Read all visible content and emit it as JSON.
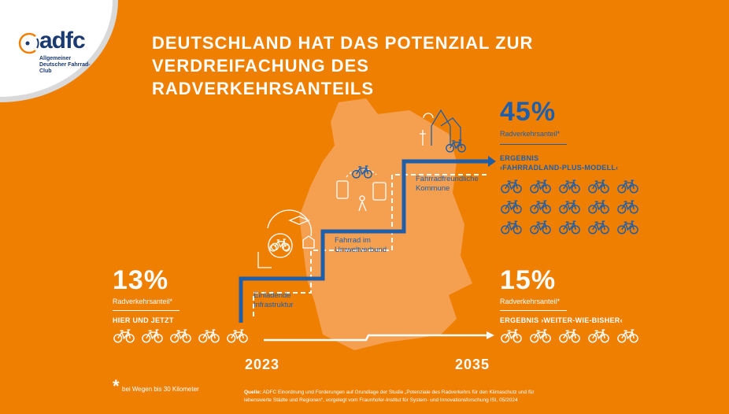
{
  "logo": {
    "word": "adfc",
    "subtitle": "Allgemeiner Deutscher Fahrrad-Club"
  },
  "title": {
    "line1": "DEUTSCHLAND HAT DAS POTENZIAL ZUR",
    "line2": "VERDREIFACHUNG DES RADVERKEHRSANTEILS"
  },
  "left": {
    "value": "13%",
    "label": "Radverkehrsanteil*",
    "caption": "HIER UND JETZT",
    "bikes": 5
  },
  "right_top": {
    "value": "45%",
    "label": "Radverkehrsanteil*",
    "caption1": "ERGEBNIS",
    "caption2": "›FAHRRADLAND-PLUS-MODELL‹",
    "bikes": 15
  },
  "right_bottom": {
    "value": "15%",
    "label": "Radverkehrsanteil*",
    "caption": "ERGEBNIS ›WEITER-WIE-BISHER‹",
    "bikes": 5
  },
  "steps": {
    "s1": "Einladende Infrastruktur",
    "s2": "Fahrrad im Umweltverbund",
    "s3": "Fahrradfreundliche Kommune"
  },
  "years": {
    "start": "2023",
    "end": "2035"
  },
  "footnote": "bei Wegen bis 30 Kilometer",
  "source": {
    "label": "Quelle:",
    "text": "ADFC Einordnung und Forderungen auf Grundlage der Studie „Potenziale des Radverkehrs für den Klimaschutz und für lebenswerte Städte und Regionen“, vorgelegt vom Fraunhofer-Institut für System- und Innovationsforschung ISI, 05/2024"
  },
  "colors": {
    "background": "#ef7f00",
    "blue": "#1f5ea8",
    "map": "#f4a050",
    "white": "#ffffff"
  }
}
